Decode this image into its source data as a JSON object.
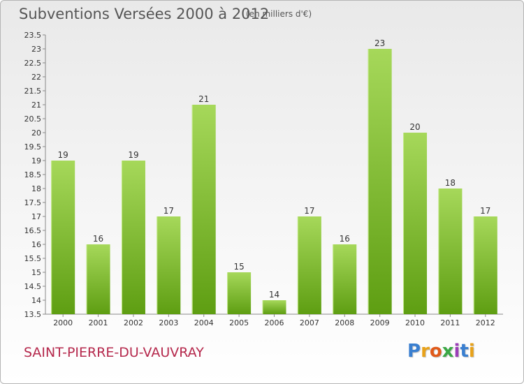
{
  "header": {
    "title": "Subventions Versées 2000 à 2012",
    "subtitle": "(en milliers d'€)"
  },
  "footer": {
    "commune": "SAINT-PIERRE-DU-VAUVRAY",
    "logo_text": "Proxiti"
  },
  "colors": {
    "bar_top": "#a6d85a",
    "bar_bottom": "#5e9e12",
    "commune": "#b5284c",
    "logo": [
      "#3a7fd0",
      "#e8a21a",
      "#e05a1a",
      "#3aa845",
      "#9b3fb8",
      "#3a7fd0",
      "#e8a21a"
    ]
  },
  "chart_data": {
    "type": "bar",
    "categories": [
      "2000",
      "2001",
      "2002",
      "2003",
      "2004",
      "2005",
      "2006",
      "2007",
      "2008",
      "2009",
      "2010",
      "2011",
      "2012"
    ],
    "values": [
      19,
      16,
      19,
      17,
      21,
      15,
      14,
      17,
      16,
      23,
      20,
      18,
      17
    ],
    "ylim": [
      13.5,
      23.5
    ],
    "ystep": 0.5,
    "title": "Subventions Versées 2000 à 2012",
    "subtitle": "(en milliers d'€)",
    "xlabel": "",
    "ylabel": "",
    "grid": false
  }
}
